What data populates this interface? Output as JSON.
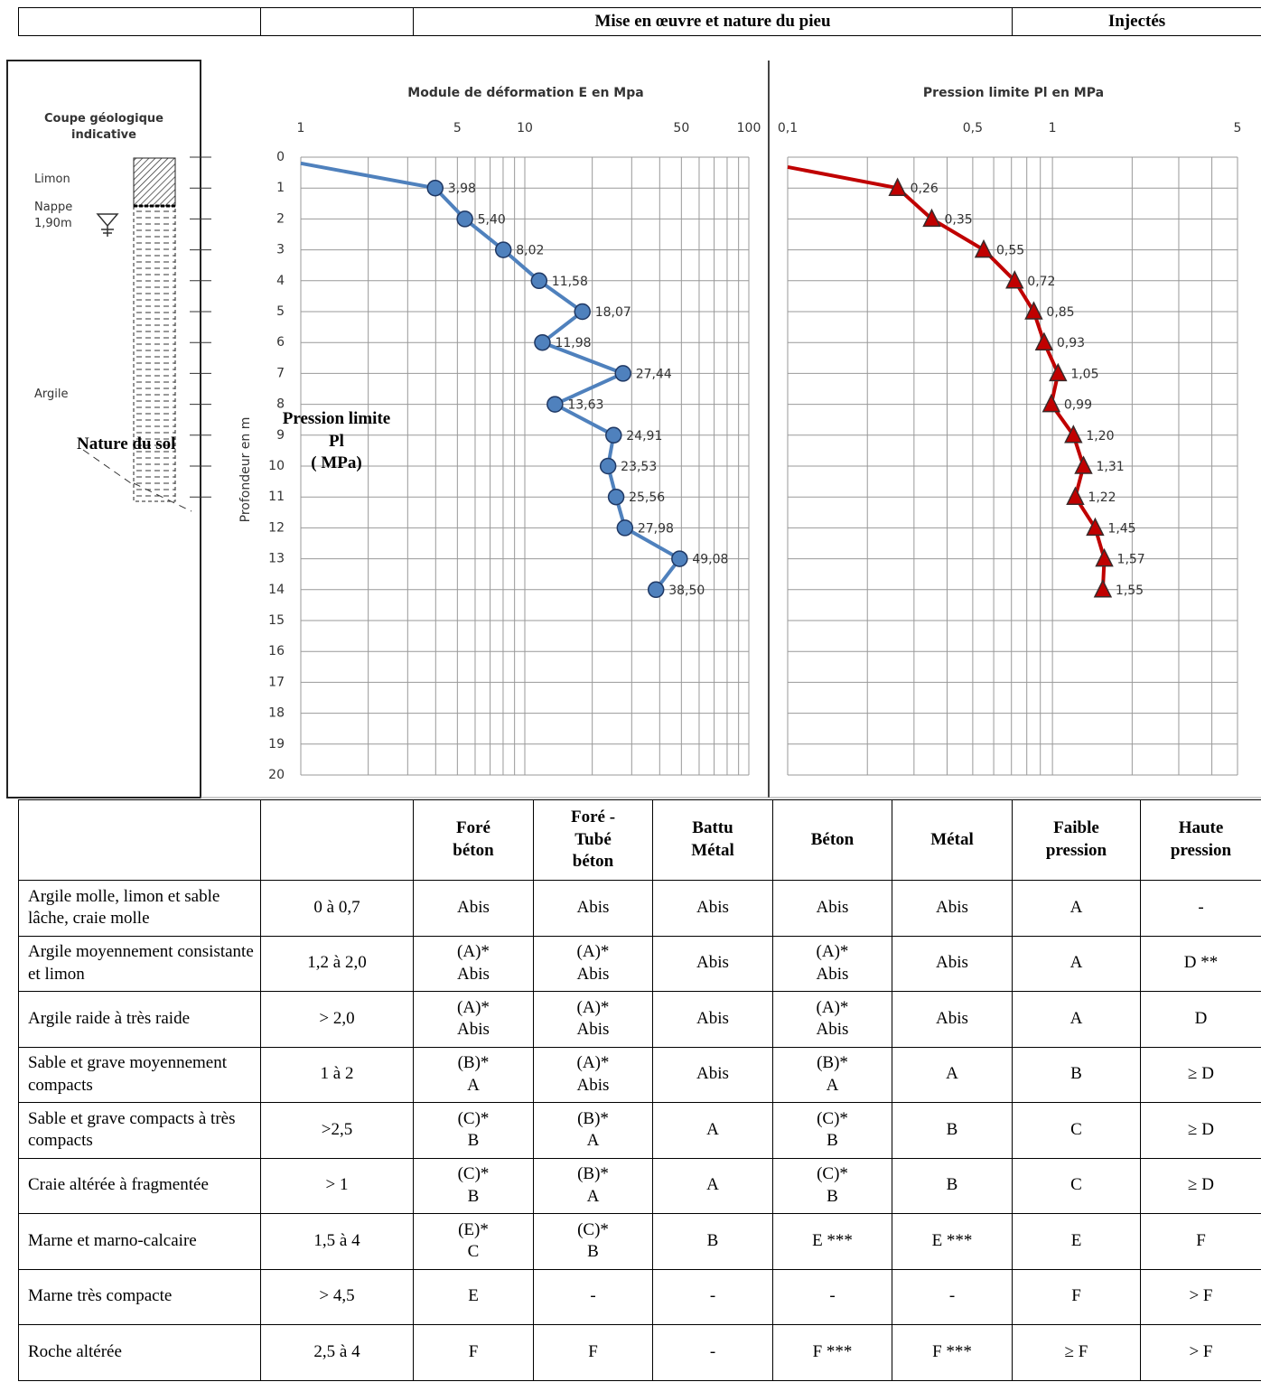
{
  "header_row": [
    "Mise en œuvre et nature du pieu",
    "Injectés"
  ],
  "geology": {
    "title": "Coupe géologique indicative",
    "limon": "Limon",
    "nappe": "Nappe\n1,90m",
    "argile": "Argile",
    "nature": "Nature du sol"
  },
  "overlay_label": "Pression limite\nPl\n( MPa)",
  "chart_data": [
    {
      "type": "line",
      "title": "Module de déformation E en Mpa",
      "y_label": "Profondeur en m",
      "x_scale": "log",
      "xlim": [
        1,
        100
      ],
      "xticks": [
        1,
        5,
        10,
        50,
        100
      ],
      "ylim": [
        0,
        20
      ],
      "y_inverted": true,
      "yticks": [
        0,
        1,
        2,
        3,
        4,
        5,
        6,
        7,
        8,
        9,
        10,
        11,
        12,
        13,
        14,
        15,
        16,
        17,
        18,
        19,
        20
      ],
      "show_ytick_labels": true,
      "grid": true,
      "series": [
        {
          "color": "#4f81bd",
          "marker": "circle",
          "x": [
            1,
            3.98,
            5.4,
            8.02,
            11.58,
            18.07,
            11.98,
            27.44,
            13.63,
            24.91,
            23.53,
            25.56,
            27.98,
            49.08,
            38.5
          ],
          "y": [
            0.2,
            1,
            2,
            3,
            4,
            5,
            6,
            7,
            8,
            9,
            10,
            11,
            12,
            13,
            14
          ],
          "value_labels": [
            null,
            "3,98",
            "5,40",
            "8,02",
            "11,58",
            "18,07",
            "11,98",
            "27,44",
            "13,63",
            "24,91",
            "23,53",
            "25,56",
            "27,98",
            "49,08",
            "38,50"
          ]
        }
      ]
    },
    {
      "type": "line",
      "title": "Pression limite Pl en MPa",
      "x_scale": "log",
      "xlim": [
        0.1,
        5
      ],
      "xticks": [
        {
          "value": 0.1,
          "label": "0,1"
        },
        {
          "value": 0.5,
          "label": "0,5"
        },
        1,
        5
      ],
      "ylim": [
        0,
        20
      ],
      "y_inverted": true,
      "yticks": [
        0,
        1,
        2,
        3,
        4,
        5,
        6,
        7,
        8,
        9,
        10,
        11,
        12,
        13,
        14,
        15,
        16,
        17,
        18,
        19,
        20
      ],
      "show_ytick_labels": false,
      "grid": true,
      "series": [
        {
          "color": "#c00000",
          "marker": "triangle",
          "x": [
            0.1,
            0.26,
            0.35,
            0.55,
            0.72,
            0.85,
            0.93,
            1.05,
            0.99,
            1.2,
            1.31,
            1.22,
            1.45,
            1.57,
            1.55
          ],
          "y": [
            0.32,
            1,
            2,
            3,
            4,
            5,
            6,
            7,
            8,
            9,
            10,
            11,
            12,
            13,
            14
          ],
          "value_labels": [
            null,
            "0,26",
            "0,35",
            "0,55",
            "0,72",
            "0,85",
            "0,93",
            "1,05",
            "0,99",
            "1,20",
            "1,31",
            "1,22",
            "1,45",
            "1,57",
            "1,55"
          ]
        }
      ]
    }
  ],
  "table": {
    "header": [
      "Foré\nbéton",
      "Foré -\nTubé\nbéton",
      "Battu\nMétal",
      "Béton",
      "Métal",
      "Faible\npression",
      "Haute\npression"
    ],
    "rows": [
      [
        "Argile molle, limon et sable lâche, craie molle",
        "0 à 0,7",
        "Abis",
        "Abis",
        "Abis",
        "Abis",
        "Abis",
        "A",
        "-"
      ],
      [
        "Argile moyennement consistante et limon",
        "1,2 à 2,0",
        "(A)*\nAbis",
        "(A)*\nAbis",
        "Abis",
        "(A)*\nAbis",
        "Abis",
        "A",
        "D **"
      ],
      [
        "Argile raide à très raide",
        "> 2,0",
        "(A)*\nAbis",
        "(A)*\nAbis",
        "Abis",
        "(A)*\nAbis",
        "Abis",
        "A",
        "D"
      ],
      [
        "Sable et grave moyennement compacts",
        "1 à 2",
        "(B)*\nA",
        "(A)*\nAbis",
        "Abis",
        "(B)*\nA",
        "A",
        "B",
        "≥ D"
      ],
      [
        "Sable et grave compacts à très compacts",
        ">2,5",
        "(C)*\nB",
        "(B)*\nA",
        "A",
        "(C)*\nB",
        "B",
        "C",
        "≥ D"
      ],
      [
        "Craie altérée à fragmentée",
        "> 1",
        "(C)*\nB",
        "(B)*\nA",
        "A",
        "(C)*\nB",
        "B",
        "C",
        "≥ D"
      ],
      [
        "Marne et marno-calcaire",
        "1,5 à 4",
        "(E)*\nC",
        "(C)*\nB",
        "B",
        "E ***",
        "E ***",
        "E",
        "F"
      ],
      [
        "Marne très compacte",
        "> 4,5",
        "E",
        "-",
        "-",
        "-",
        "-",
        "F",
        "> F"
      ],
      [
        "Roche altérée",
        "2,5 à 4",
        "F",
        "F",
        "-",
        "F ***",
        "F ***",
        "≥ F",
        "> F"
      ]
    ]
  }
}
